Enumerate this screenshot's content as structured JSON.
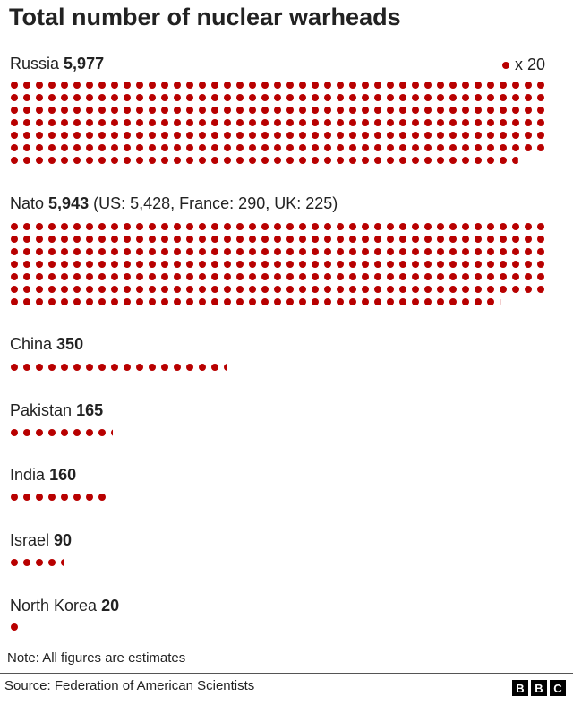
{
  "chart_data": {
    "type": "pictogram",
    "title": "Total number of nuclear warheads",
    "legend": {
      "symbol": "dot",
      "label": "x 20",
      "units_per_dot": 20,
      "placement": "top-right"
    },
    "dot_color": "#b80000",
    "categories": [
      {
        "name": "Russia",
        "value": 5977,
        "value_label": "5,977",
        "detail": ""
      },
      {
        "name": "Nato",
        "value": 5943,
        "value_label": "5,943",
        "detail": "(US: 5,428, France: 290, UK: 225)"
      },
      {
        "name": "China",
        "value": 350,
        "value_label": "350",
        "detail": ""
      },
      {
        "name": "Pakistan",
        "value": 165,
        "value_label": "165",
        "detail": ""
      },
      {
        "name": "India",
        "value": 160,
        "value_label": "160",
        "detail": ""
      },
      {
        "name": "Israel",
        "value": 90,
        "value_label": "90",
        "detail": ""
      },
      {
        "name": "North Korea",
        "value": 20,
        "value_label": "20",
        "detail": ""
      }
    ],
    "note": "Note: All figures are estimates",
    "source": "Source: Federation of American Scientists"
  },
  "branding": {
    "logo_letters": [
      "B",
      "B",
      "C"
    ]
  }
}
